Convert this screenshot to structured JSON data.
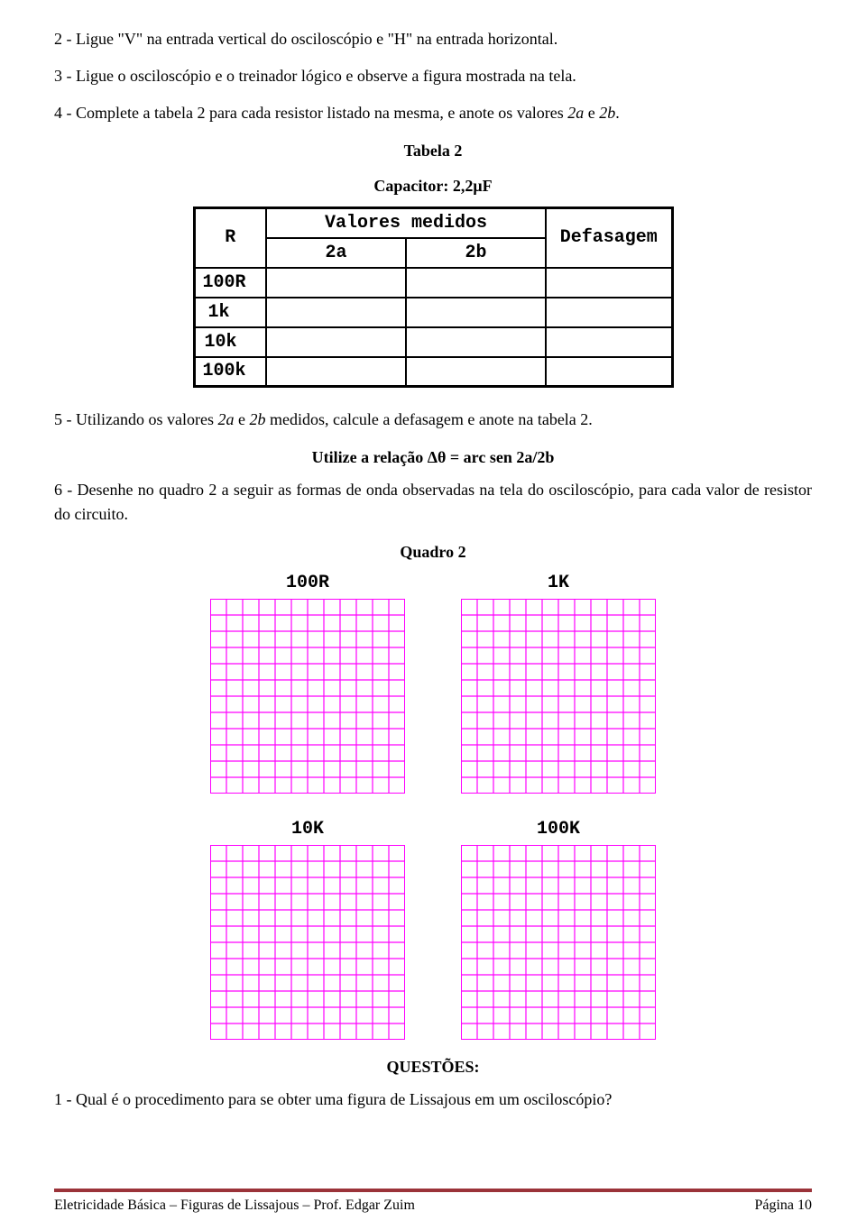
{
  "paragraphs": {
    "p1": "2 - Ligue \"V\" na entrada vertical do osciloscópio e \"H\" na entrada horizontal.",
    "p2": "3 - Ligue o osciloscópio e o treinador lógico e observe a figura mostrada na tela.",
    "p3_a": "4 - Complete a tabela 2 para cada resistor listado na mesma, e anote os valores ",
    "p3_i1": "2a",
    "p3_b": " e ",
    "p3_i2": "2b",
    "p3_c": ".",
    "p4_a": "5 - Utilizando os valores ",
    "p4_i1": "2a",
    "p4_b": " e ",
    "p4_i2": "2b",
    "p4_c": " medidos, calcule a defasagem e anote na tabela 2.",
    "p5": "6 - Desenhe no quadro 2 a seguir as formas de onda observadas na tela do osciloscópio, para cada valor de resistor do circuito.",
    "q1": "1 - Qual é o procedimento para se obter uma figura de Lissajous em um osciloscópio?"
  },
  "headings": {
    "tabela2": "Tabela 2",
    "capacitor": "Capacitor: 2,2μF",
    "relacao": "Utilize a relação Δθ = arc sen 2a/2b",
    "quadro2": "Quadro 2",
    "questoes": "QUESTÕES:"
  },
  "table1": {
    "head_r": "R",
    "head_vm": "Valores medidos",
    "head_def": "Defasagem",
    "head_2a": "2a",
    "head_2b": "2b",
    "rows": [
      "100R",
      "1k",
      "10k",
      "100k"
    ]
  },
  "quadro": {
    "labels": [
      "100R",
      "1K",
      "10K",
      "100K"
    ],
    "grid_color": "#ff00ff",
    "grid_cells": 12,
    "grid_size": 216
  },
  "footer": {
    "left": "Eletricidade Básica – Figuras de Lissajous – Prof. Edgar Zuim",
    "right": "Página 10",
    "line_color": "#9b3339"
  },
  "colors": {
    "text": "#000000",
    "background": "#ffffff"
  }
}
